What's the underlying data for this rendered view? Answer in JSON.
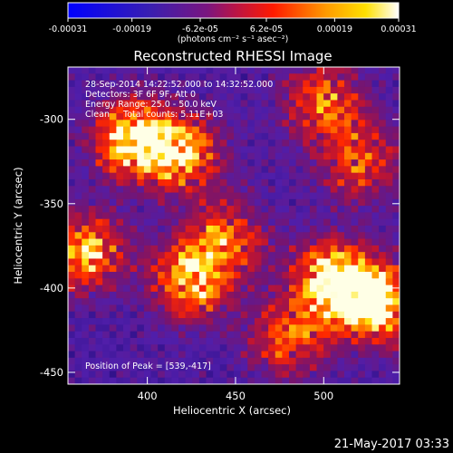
{
  "chart_data": {
    "type": "heatmap",
    "title": "Reconstructed RHESSI Image",
    "xlabel": "Heliocentric X (arcsec)",
    "ylabel": "Heliocentric Y (arcsec)",
    "xlim": [
      355,
      543
    ],
    "ylim": [
      -457,
      -269
    ],
    "x_ticks": [
      400,
      450,
      500
    ],
    "y_ticks": [
      -300,
      -350,
      -400,
      -450
    ],
    "colorbar": {
      "label": "(photons cm⁻² s⁻¹ asec⁻²)",
      "range": [
        -0.00031,
        0.00031
      ],
      "tick_labels": [
        "-0.00031",
        "-0.00019",
        "-6.2e-05",
        "6.2e-05",
        "0.00019",
        "0.00031"
      ],
      "tick_values": [
        -0.00031,
        -0.00019,
        -6.2e-05,
        6.2e-05,
        0.00019,
        0.00031
      ]
    },
    "annotations": [
      "28-Sep-2014 14:22:52.000 to 14:32:52.000",
      "Detectors: 3F 6F 9F, Att 0",
      "Energy Range: 25.0 - 50.0 keV",
      "Clean     Total counts: 5.11E+03"
    ],
    "peak_label": "Position of Peak = [539,-417]",
    "peak": [
      539,
      -417
    ],
    "bright_regions": [
      {
        "x": 392,
        "y": -312,
        "intensity": 0.9
      },
      {
        "x": 420,
        "y": -320,
        "intensity": 0.75
      },
      {
        "x": 500,
        "y": -290,
        "intensity": 0.6
      },
      {
        "x": 520,
        "y": -325,
        "intensity": 0.55
      },
      {
        "x": 365,
        "y": -378,
        "intensity": 0.75
      },
      {
        "x": 425,
        "y": -395,
        "intensity": 0.8
      },
      {
        "x": 445,
        "y": -370,
        "intensity": 0.55
      },
      {
        "x": 505,
        "y": -395,
        "intensity": 0.95
      },
      {
        "x": 530,
        "y": -410,
        "intensity": 1.0
      },
      {
        "x": 480,
        "y": -430,
        "intensity": 0.6
      }
    ]
  },
  "footer": {
    "timestamp": "21-May-2017 03:33"
  }
}
